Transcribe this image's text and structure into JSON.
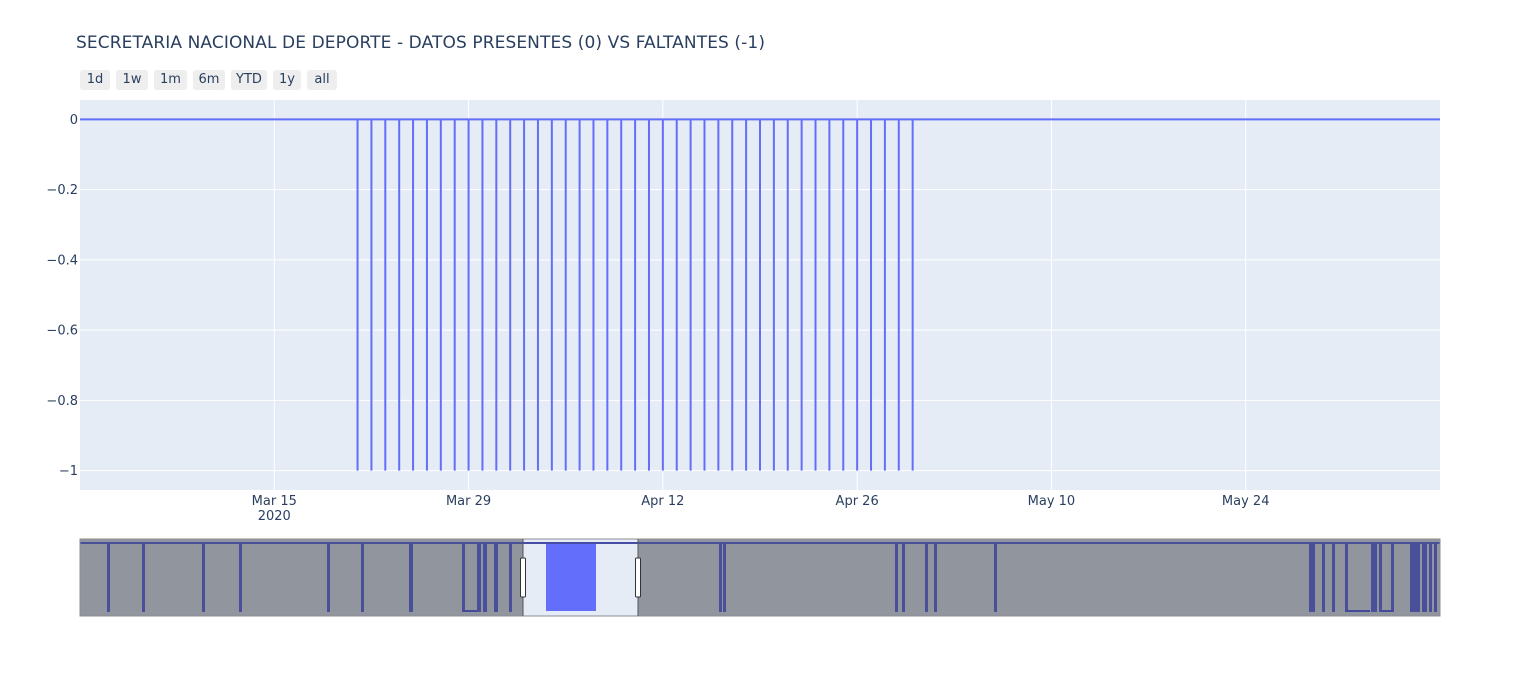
{
  "chart_data": {
    "type": "line",
    "title": "SECRETARIA NACIONAL DE DEPORTE - DATOS PRESENTES (0) VS FALTANTES (-1)",
    "xlabel": "",
    "ylabel": "",
    "x_visible_range": [
      "2020-03-01",
      "2020-06-07"
    ],
    "ylim": [
      -1.055,
      0.055
    ],
    "yticks": [
      0,
      -0.2,
      -0.4,
      -0.6,
      -0.8,
      -1
    ],
    "ytick_labels": [
      "0",
      "−0.2",
      "−0.4",
      "−0.6",
      "−0.8",
      "−1"
    ],
    "xticks": [
      "2020-03-15",
      "2020-03-29",
      "2020-04-12",
      "2020-04-26",
      "2020-05-10",
      "2020-05-24"
    ],
    "xtick_labels": [
      "Mar 15",
      "Mar 29",
      "Apr 12",
      "Apr 26",
      "May 10",
      "May 24"
    ],
    "xtick_year_label": "2020",
    "grid": true,
    "line_color": "#636efa",
    "plot_bg": "#e5ecf6",
    "series": [
      {
        "missing_days": [
          "2020-03-21",
          "2020-03-22",
          "2020-03-23",
          "2020-03-24",
          "2020-03-25",
          "2020-03-26",
          "2020-03-27",
          "2020-03-28",
          "2020-03-29",
          "2020-03-30",
          "2020-03-31",
          "2020-04-01",
          "2020-04-02",
          "2020-04-03",
          "2020-04-04",
          "2020-04-05",
          "2020-04-06",
          "2020-04-07",
          "2020-04-08",
          "2020-04-09",
          "2020-04-10",
          "2020-04-11",
          "2020-04-12",
          "2020-04-13",
          "2020-04-14",
          "2020-04-15",
          "2020-04-16",
          "2020-04-17",
          "2020-04-18",
          "2020-04-19",
          "2020-04-20",
          "2020-04-21",
          "2020-04-22",
          "2020-04-23",
          "2020-04-24",
          "2020-04-25",
          "2020-04-26",
          "2020-04-27",
          "2020-04-28",
          "2020-04-29",
          "2020-04-30"
        ],
        "present_value": 0,
        "missing_value": -1
      }
    ],
    "range_selector": {
      "buttons": [
        "1d",
        "1w",
        "1m",
        "6m",
        "YTD",
        "1y",
        "all"
      ]
    },
    "range_slider": {
      "mask_color": "#8a8d95",
      "window_bg": "#e5ecf6",
      "trace_color": "#44499a"
    }
  }
}
